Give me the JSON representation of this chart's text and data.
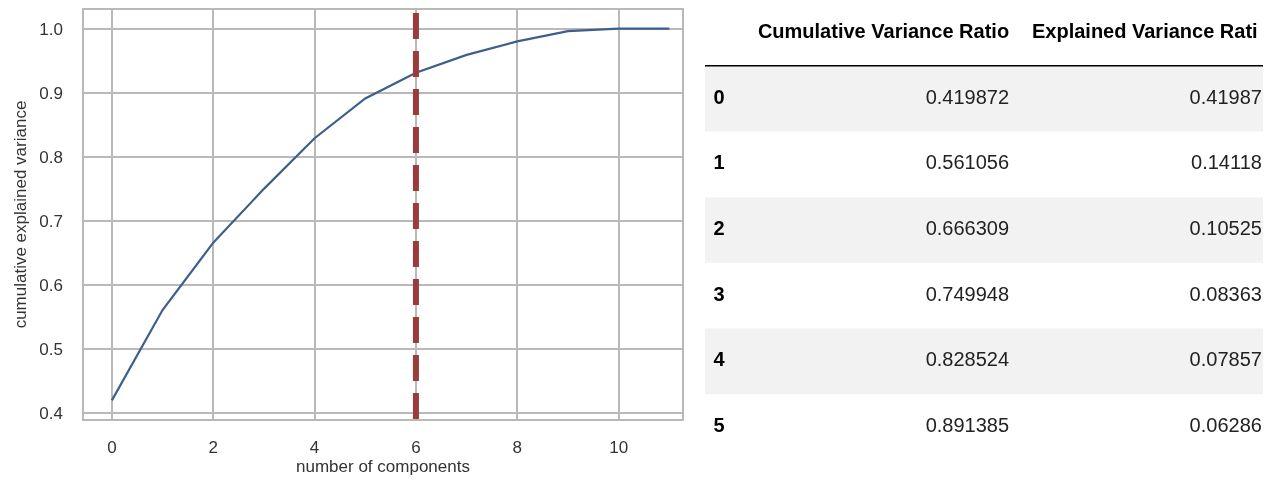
{
  "chart_data": [
    {
      "type": "line",
      "xlabel": "number of components",
      "ylabel": "cumulative explained variance",
      "x": [
        0,
        1,
        2,
        3,
        4,
        5,
        6,
        7,
        8,
        9,
        10,
        11
      ],
      "series": [
        {
          "color": "#3e5f8a",
          "values": [
            0.42,
            0.561,
            0.666,
            0.75,
            0.829,
            0.891,
            0.931,
            0.959,
            0.98,
            0.996,
            1.0,
            1.0
          ]
        }
      ],
      "xlim": [
        -0.55,
        11.25
      ],
      "ylim": [
        0.391,
        1.029
      ],
      "xticks": [
        0,
        2,
        4,
        6,
        8,
        10
      ],
      "yticks": [
        0.4,
        0.5,
        0.6,
        0.7,
        0.8,
        0.9,
        {
          "value": 1,
          "label": "1.0"
        }
      ],
      "grid": true,
      "ref_lines": [
        {
          "axis": "x",
          "value": 6,
          "color": "#9b3b3e",
          "line_style": "dashed"
        }
      ]
    },
    {
      "type": "heatmap",
      "categories": [
        "Cumulative Variance Ratio",
        "Explained Variance Rati"
      ],
      "y_categories": [
        "0",
        "1",
        "2",
        "3",
        "4",
        "5"
      ],
      "cells": [
        [
          0.419872,
          0.41987
        ],
        [
          0.561056,
          0.14118
        ],
        [
          0.666309,
          0.10525
        ],
        [
          0.749948,
          0.08363
        ],
        [
          0.828524,
          0.07857
        ],
        [
          0.891385,
          0.06286
        ]
      ],
      "data_labels": true
    }
  ]
}
